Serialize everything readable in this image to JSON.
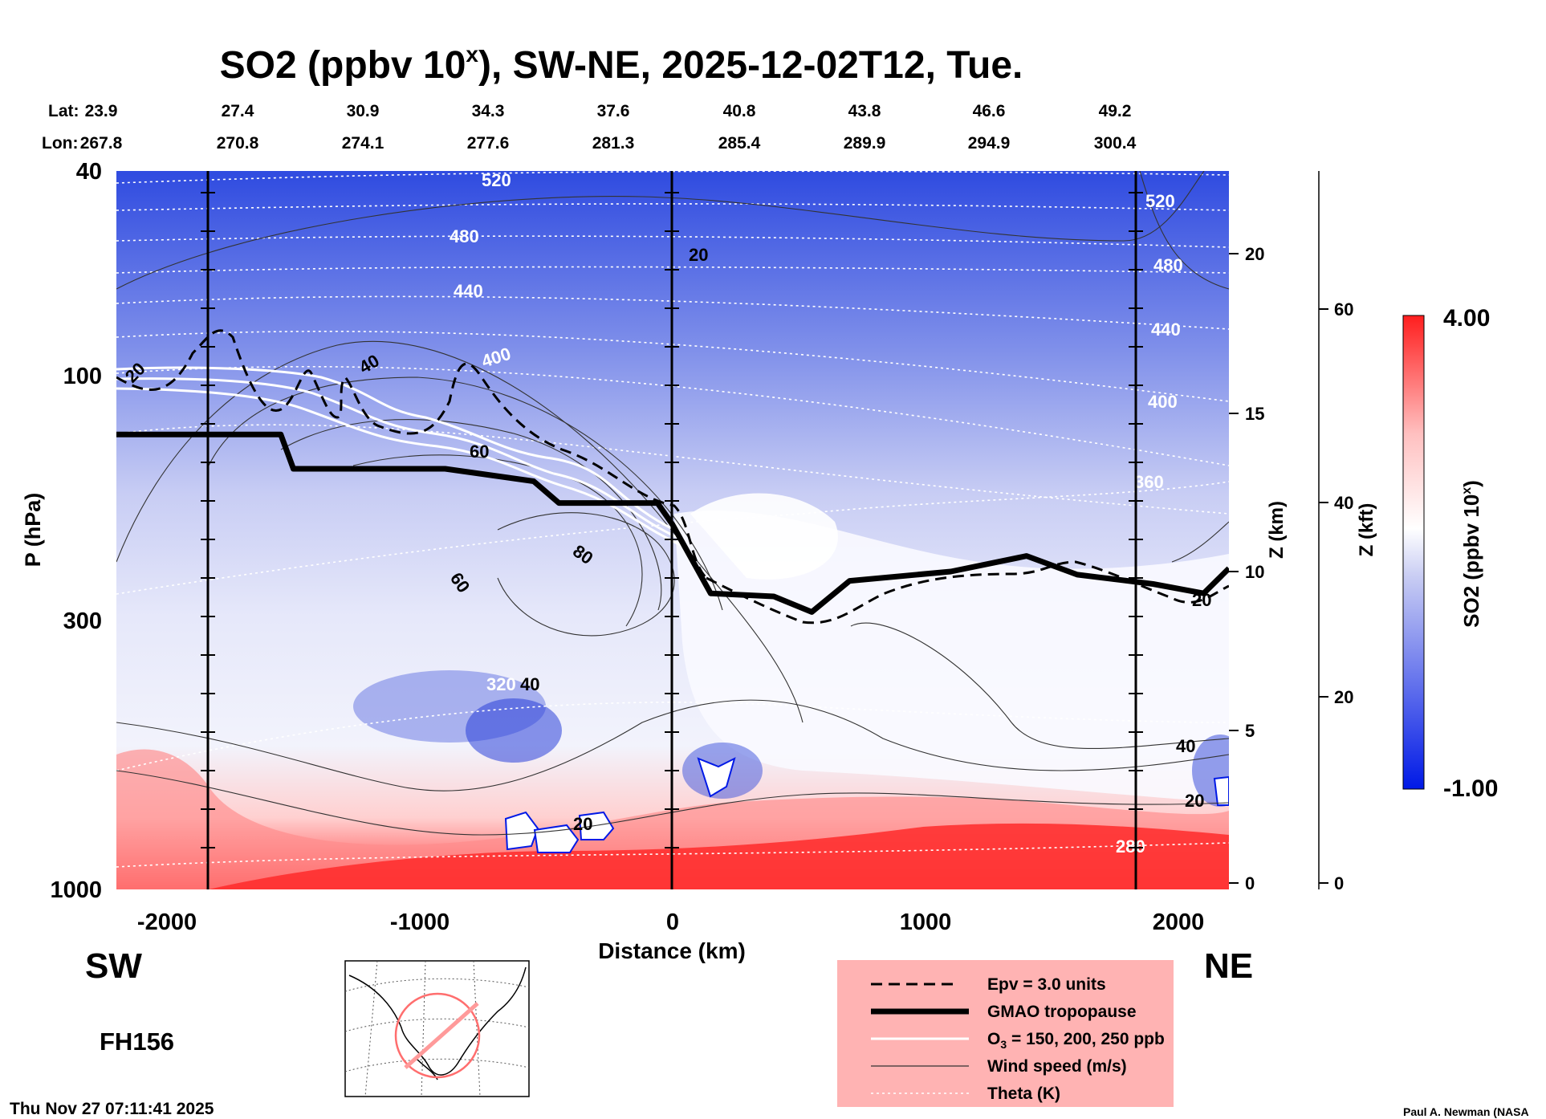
{
  "chart_data": {
    "type": "heatmap",
    "title": "SO2 (ppbv 10",
    "title_sup": "x",
    "title_suffix": "), SW-NE, 2025-12-02T12, Tue.",
    "xlabel": "Distance (km)",
    "ylabel": "P (hPa)",
    "xlim": [
      -2200,
      2200
    ],
    "ylim": [
      1000,
      40
    ],
    "x_ticks": [
      "-2000",
      "-1000",
      "0",
      "1000",
      "2000"
    ],
    "x_tick_values": [
      -2000,
      -1000,
      0,
      1000,
      2000
    ],
    "y_ticks": [
      "40",
      "100",
      "300",
      "1000"
    ],
    "y_tick_values": [
      40,
      100,
      300,
      1000
    ],
    "z_km_label": "Z (km)",
    "z_km_ticks": [
      "0",
      "5",
      "10",
      "15",
      "20"
    ],
    "z_kft_label": "Z (kft)",
    "z_kft_ticks": [
      "0",
      "20",
      "40",
      "60"
    ],
    "lat_label": "Lat:",
    "lon_label": "Lon:",
    "lat_values": [
      "23.9",
      "27.4",
      "30.9",
      "34.3",
      "37.6",
      "40.8",
      "43.8",
      "46.6",
      "49.2"
    ],
    "lon_values": [
      "267.8",
      "270.8",
      "274.1",
      "277.6",
      "281.3",
      "285.4",
      "289.9",
      "294.9",
      "300.4"
    ],
    "colorbar": {
      "label": "SO2 (ppbv 10",
      "label_sup": "x",
      "label_suffix": ")",
      "max": "4.00",
      "min": "-1.00",
      "colors": [
        "#0019e6",
        "#ffffff",
        "#ff1e1e"
      ]
    },
    "tropopause_km": [
      {
        "x": -2200,
        "z": 14.4
      },
      {
        "x": -1550,
        "z": 14.4
      },
      {
        "x": -1500,
        "z": 13.3
      },
      {
        "x": -900,
        "z": 13.3
      },
      {
        "x": -550,
        "z": 12.9
      },
      {
        "x": -450,
        "z": 12.2
      },
      {
        "x": -60,
        "z": 12.2
      },
      {
        "x": 0,
        "z": 11.5
      },
      {
        "x": 150,
        "z": 9.3
      },
      {
        "x": 400,
        "z": 9.2
      },
      {
        "x": 550,
        "z": 8.7
      },
      {
        "x": 700,
        "z": 9.7
      },
      {
        "x": 1100,
        "z": 10.0
      },
      {
        "x": 1400,
        "z": 10.5
      },
      {
        "x": 1600,
        "z": 9.9
      },
      {
        "x": 1900,
        "z": 9.6
      },
      {
        "x": 2100,
        "z": 9.3
      },
      {
        "x": 2200,
        "z": 10.1
      }
    ],
    "contour_labels": {
      "theta": [
        "520",
        "480",
        "440",
        "400",
        "360",
        "320",
        "280",
        "520",
        "480",
        "440",
        "400"
      ],
      "wind": [
        "20",
        "40",
        "60",
        "60",
        "80",
        "40",
        "40",
        "20",
        "20",
        "20",
        "20"
      ]
    },
    "legend": {
      "epv": "Epv = 3.0 units",
      "tropopause": "GMAO tropopause",
      "o3": "O",
      "o3_sub": "3",
      "o3_suffix": " = 150, 200, 250 ppb",
      "wind": "Wind speed (m/s)",
      "theta": "Theta (K)",
      "background": "#ffb3b3"
    },
    "side_labels": {
      "left": "SW",
      "right": "NE"
    },
    "forecast_hour": "FH156"
  },
  "footer": {
    "timestamp": "Thu Nov 27 07:11:41 2025",
    "credit": "Paul A. Newman (NASA"
  }
}
